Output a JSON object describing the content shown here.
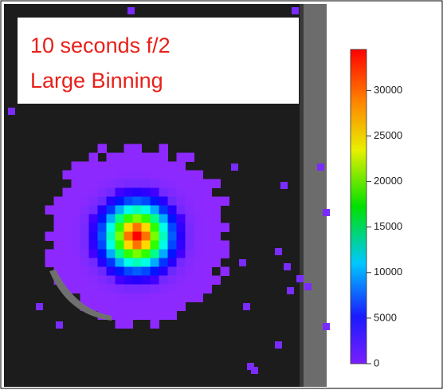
{
  "chart_data": {
    "type": "heatmap",
    "annotation": [
      "10 seconds   f/2",
      "Large Binning"
    ],
    "colorbar": {
      "range": [
        0,
        34500
      ],
      "ticks": [
        0,
        5000,
        10000,
        15000,
        20000,
        25000,
        30000
      ]
    }
  }
}
